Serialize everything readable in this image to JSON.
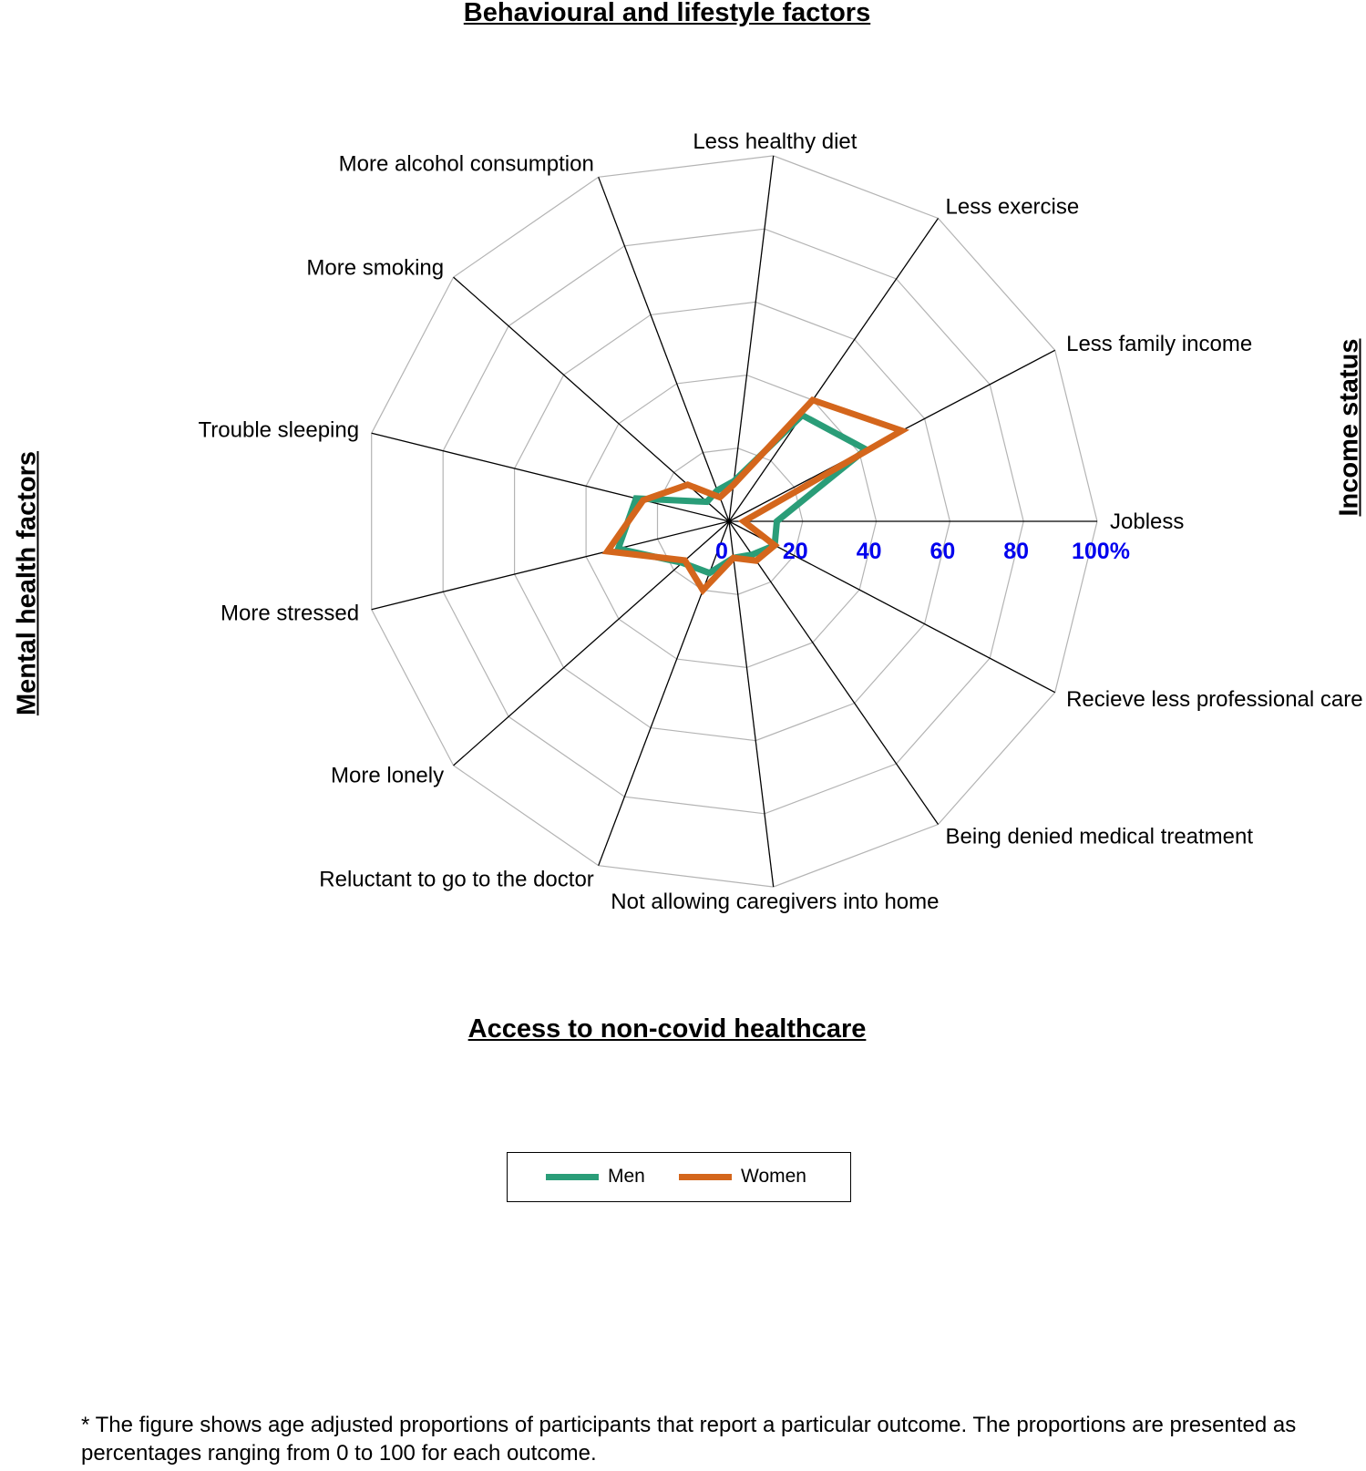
{
  "group_titles": {
    "top": "Behavioural and lifestyle factors",
    "bottom": "Access to non-covid healthcare",
    "left": "Mental health factors",
    "right": "Income status"
  },
  "legend": [
    {
      "label": "Men",
      "color": "#2a9d78"
    },
    {
      "label": "Women",
      "color": "#d4661c"
    }
  ],
  "footnote": "* The figure shows age adjusted proportions of participants that report a particular outcome. The proportions are presented as percentages ranging from 0 to 100 for each outcome.",
  "chart_data": {
    "type": "radar",
    "categories": [
      "Jobless",
      "Less family income",
      "Less exercise",
      "Less healthy diet",
      "More alcohol consumption",
      "More smoking",
      "Trouble sleeping",
      "More stressed",
      "More lonely",
      "Reluctant to go to the doctor",
      "Not allowing caregivers into home",
      "Being denied medical treatment",
      "Recieve less professional care"
    ],
    "tick_labels": [
      "0",
      "20",
      "40",
      "60",
      "80",
      "100%"
    ],
    "range": [
      0,
      100
    ],
    "grid": true,
    "series": [
      {
        "name": "Men",
        "color": "#2a9d78",
        "values": [
          13,
          42,
          35,
          11,
          9,
          8,
          26,
          31,
          17,
          15,
          10,
          11,
          14
        ]
      },
      {
        "name": "Women",
        "color": "#d4661c",
        "values": [
          4,
          53,
          40,
          10,
          7,
          15,
          24,
          34,
          16,
          20,
          10,
          13,
          14
        ]
      }
    ]
  }
}
